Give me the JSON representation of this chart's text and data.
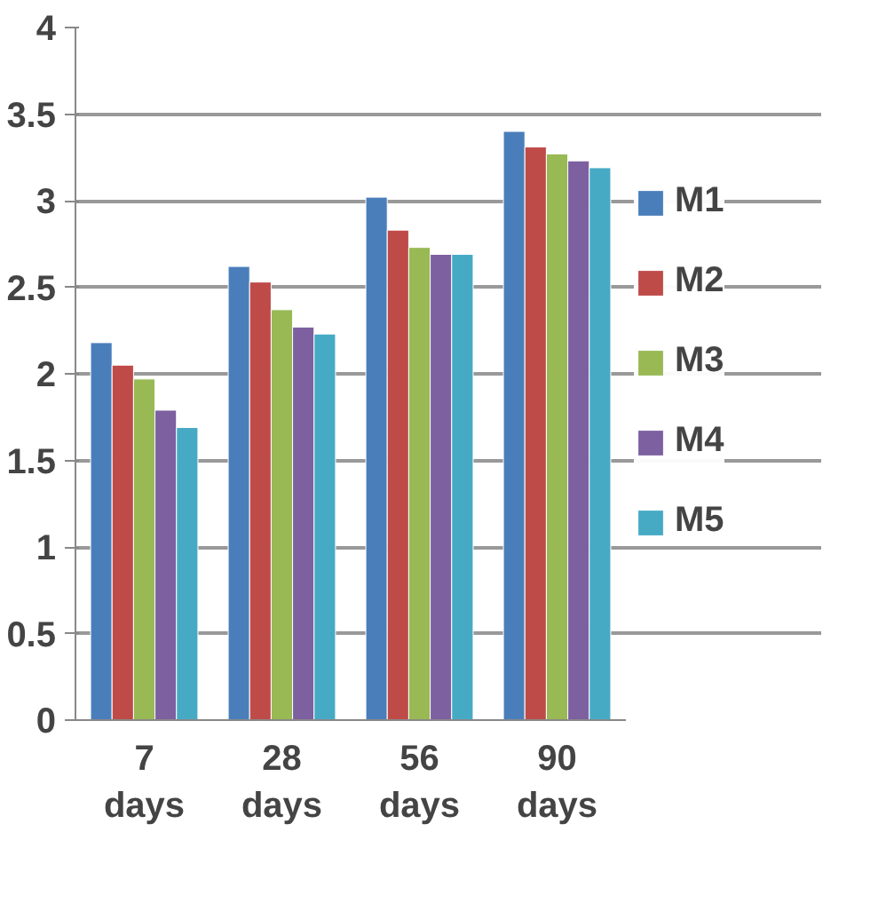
{
  "chart_data": {
    "type": "bar",
    "categories": [
      "7\ndays",
      "28\ndays",
      "56\ndays",
      "90\ndays"
    ],
    "series": [
      {
        "name": "M1",
        "color": "#4a7ebb",
        "values": [
          2.18,
          2.62,
          3.02,
          3.4
        ]
      },
      {
        "name": "M2",
        "color": "#be4b48",
        "values": [
          2.05,
          2.53,
          2.83,
          3.31
        ]
      },
      {
        "name": "M3",
        "color": "#98b954",
        "values": [
          1.97,
          2.37,
          2.73,
          3.27
        ]
      },
      {
        "name": "M4",
        "color": "#7d60a0",
        "values": [
          1.79,
          2.27,
          2.69,
          3.23
        ]
      },
      {
        "name": "M5",
        "color": "#46aac5",
        "values": [
          1.69,
          2.23,
          2.69,
          3.19
        ]
      }
    ],
    "ylim": [
      0,
      4
    ],
    "yticks": [
      0,
      0.5,
      1,
      1.5,
      2,
      2.5,
      3,
      3.5,
      4
    ],
    "grid": "y",
    "legend": "right"
  }
}
